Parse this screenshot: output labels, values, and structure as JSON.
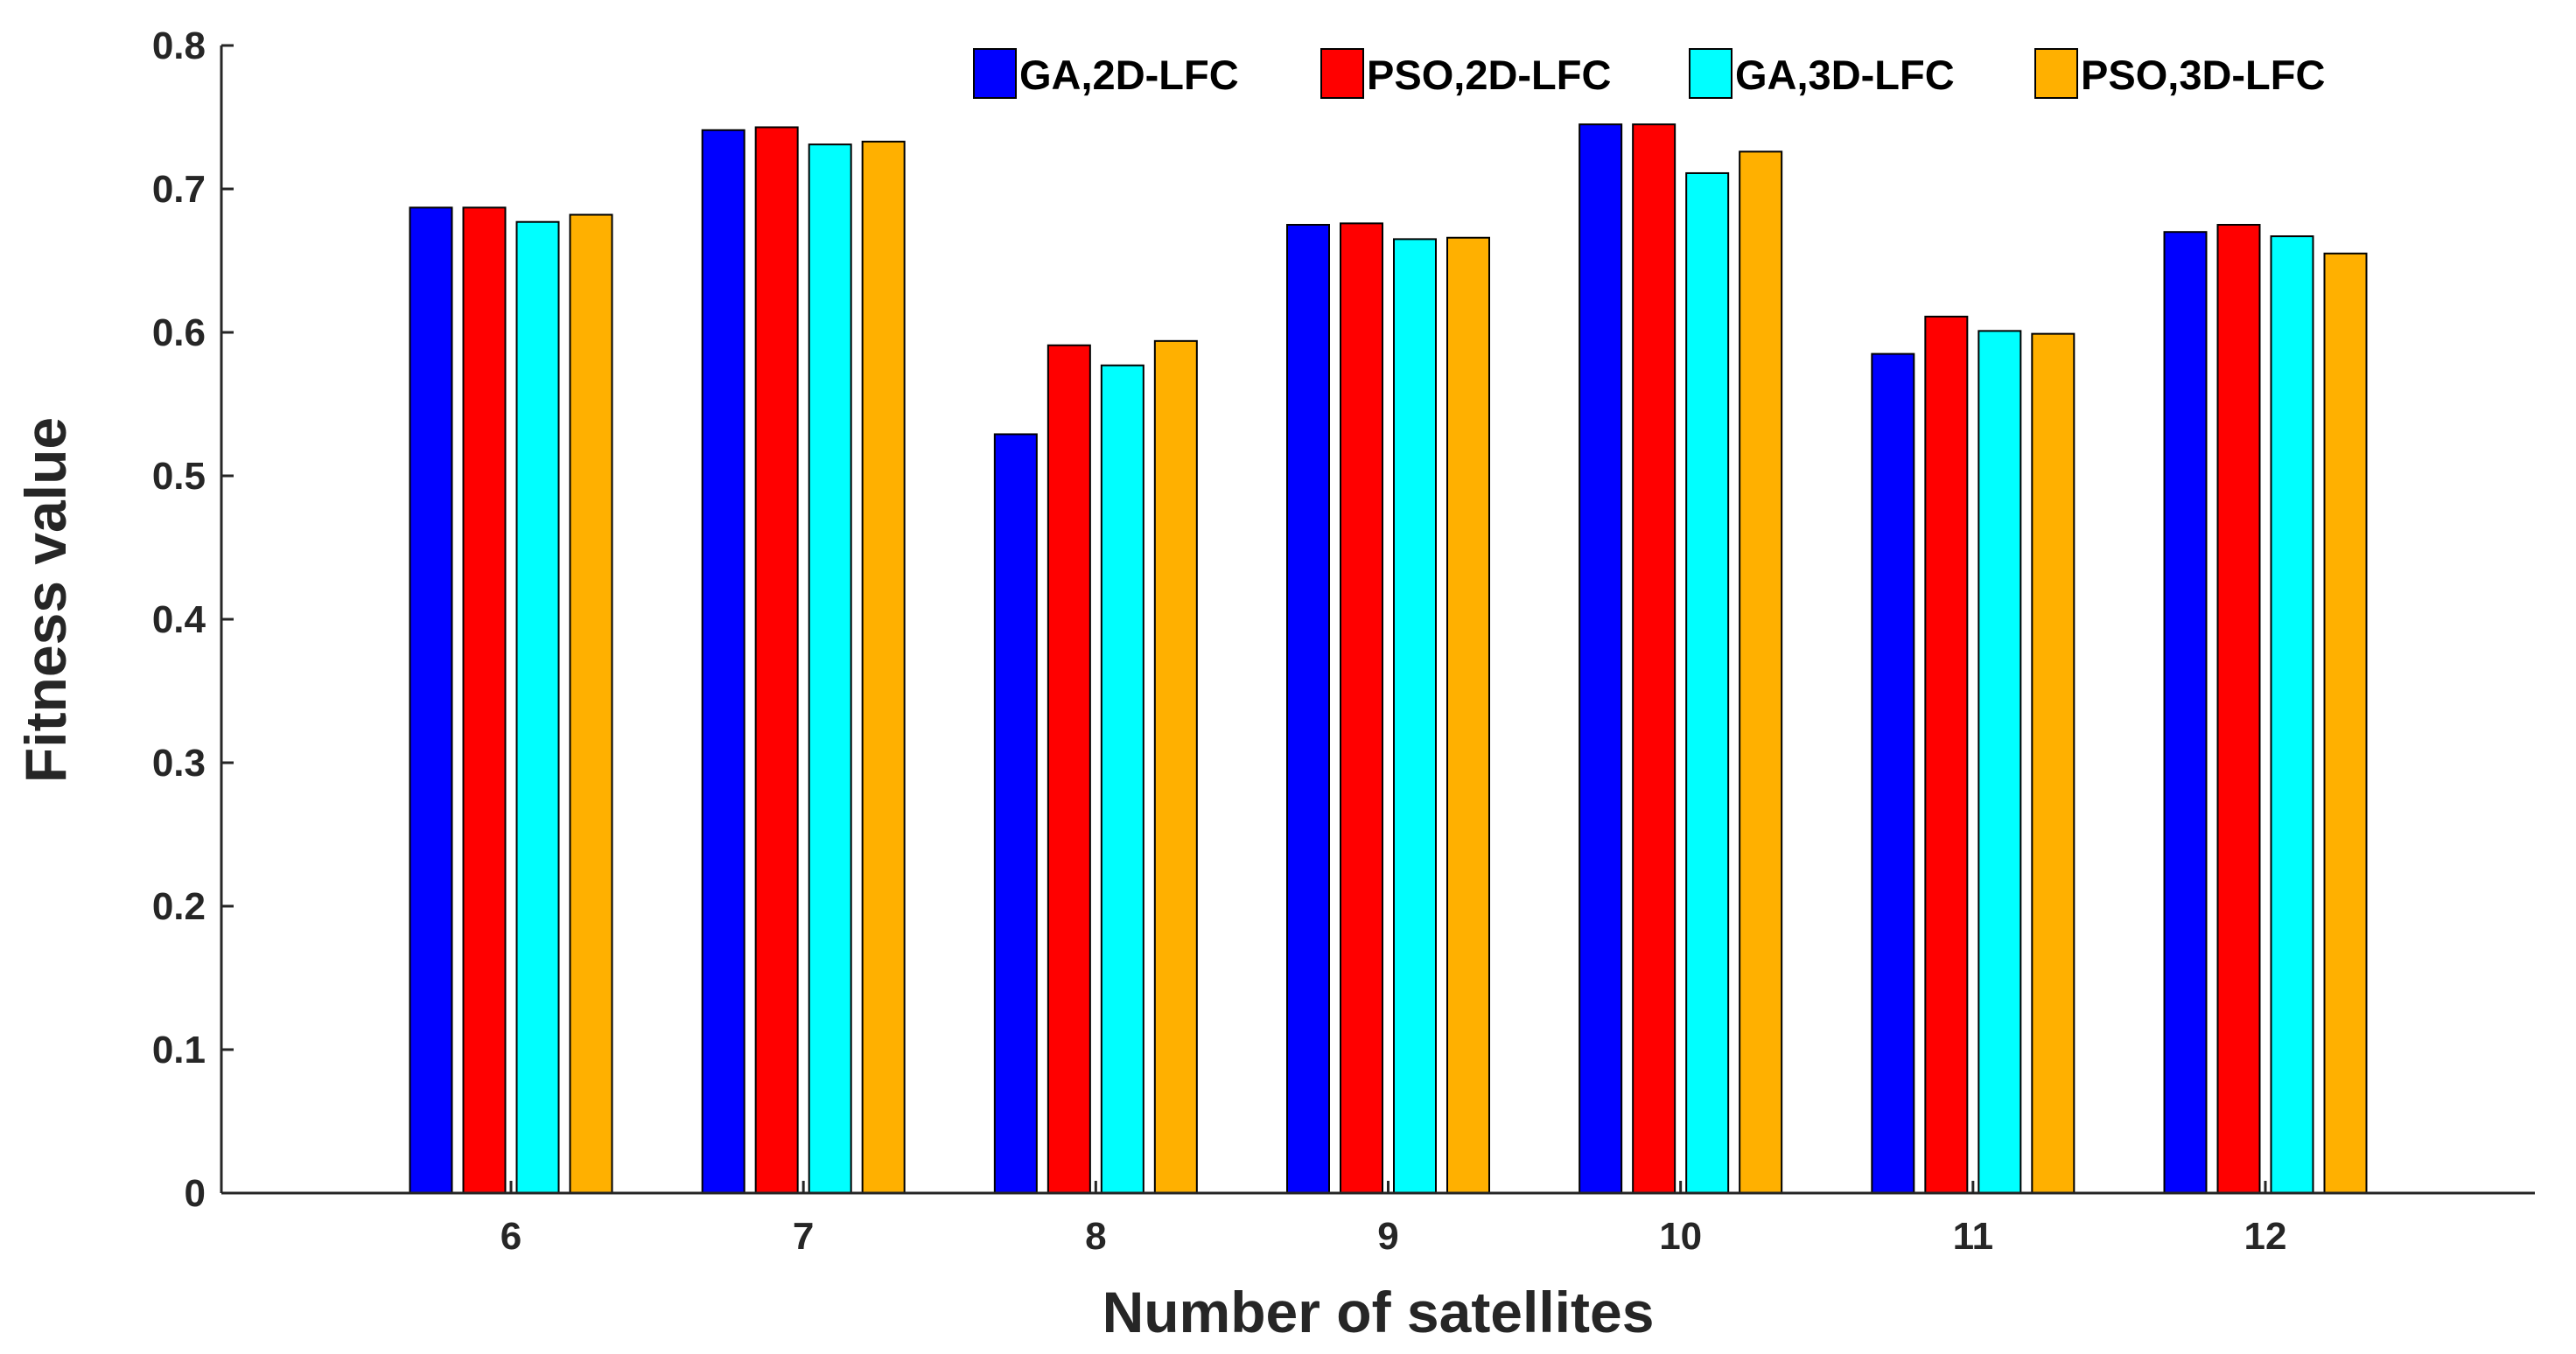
{
  "chart_data": {
    "type": "bar",
    "title": "",
    "xlabel": "Number of satellites",
    "ylabel": "Fitness value",
    "categories": [
      "6",
      "7",
      "8",
      "9",
      "10",
      "11",
      "12"
    ],
    "ylim": [
      0,
      0.8
    ],
    "yticks": [
      "0",
      "0.1",
      "0.2",
      "0.3",
      "0.4",
      "0.5",
      "0.6",
      "0.7",
      "0.8"
    ],
    "grid": false,
    "legend_position": "top-right",
    "series": [
      {
        "name": "GA,2D-LFC",
        "color": "#0000FF",
        "values": [
          0.687,
          0.741,
          0.529,
          0.675,
          0.745,
          0.585,
          0.67
        ]
      },
      {
        "name": "PSO,2D-LFC",
        "color": "#FF0000",
        "values": [
          0.687,
          0.743,
          0.591,
          0.676,
          0.745,
          0.611,
          0.675
        ]
      },
      {
        "name": "GA,3D-LFC",
        "color": "#00FFFF",
        "values": [
          0.677,
          0.731,
          0.577,
          0.665,
          0.711,
          0.601,
          0.667
        ]
      },
      {
        "name": "PSO,3D-LFC",
        "color": "#FFB000",
        "values": [
          0.682,
          0.733,
          0.594,
          0.666,
          0.726,
          0.599,
          0.655
        ]
      }
    ]
  }
}
